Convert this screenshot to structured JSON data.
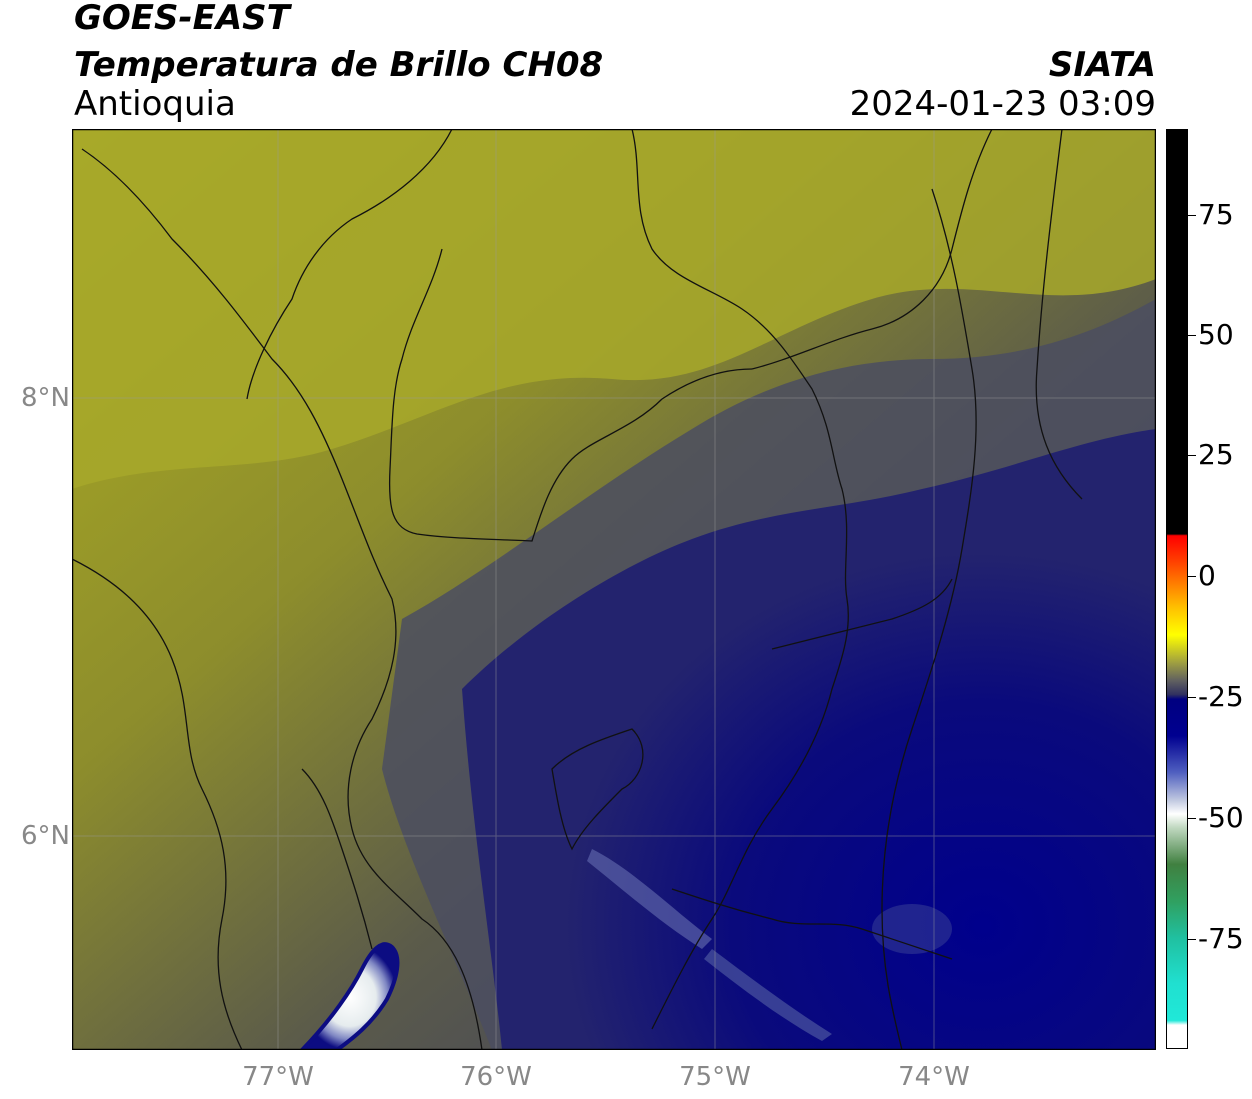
{
  "header": {
    "satellite": "GOES-EAST",
    "product": "Temperatura de Brillo CH08",
    "region": "Antioquia",
    "organization": "SIATA",
    "datetime": "2024-01-23 03:09"
  },
  "axes": {
    "latitude_ticks": [
      "8°N",
      "6°N"
    ],
    "longitude_ticks": [
      "77°W",
      "76°W",
      "75°W",
      "74°W"
    ]
  },
  "colorbar": {
    "ticks": [
      "75",
      "50",
      "25",
      "0",
      "-25",
      "-50",
      "-75"
    ]
  },
  "colors": {
    "warm_yellow": "#b2b21e",
    "olive": "#6e6e32",
    "cold_navy": "#0a0a78",
    "deep_blue": "#00008c"
  }
}
